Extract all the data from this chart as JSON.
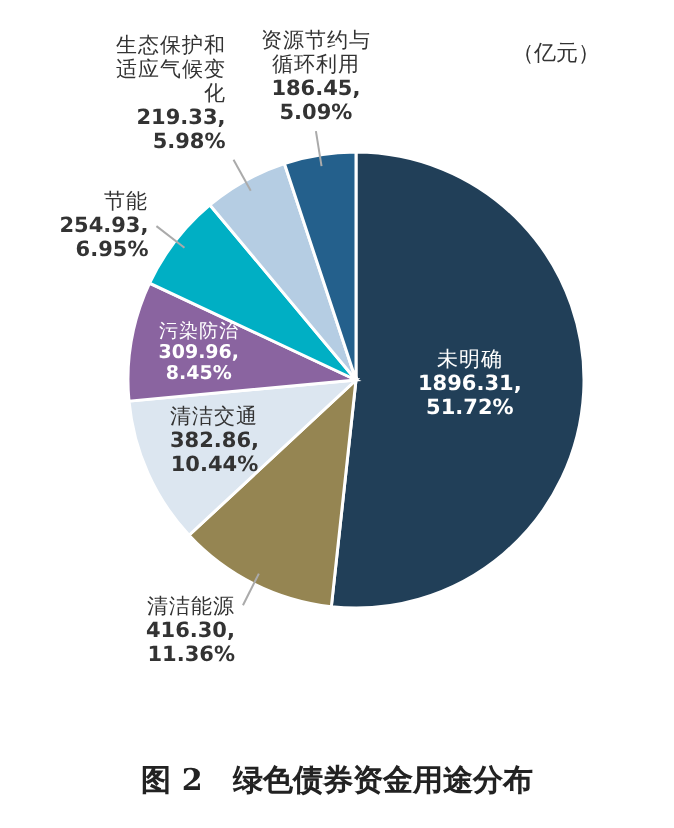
{
  "chart_data": {
    "type": "pie",
    "title": "图 2　绿色债券资金用途分布",
    "annotations": [
      "（亿元）"
    ],
    "categories": [
      "未明确",
      "清洁能源",
      "清洁交通",
      "污染防治",
      "节能",
      "生态保护和适应气候变化",
      "资源节约与循环利用"
    ],
    "values": [
      1896.31,
      416.3,
      382.86,
      309.96,
      254.93,
      219.33,
      186.45
    ],
    "value_labels": [
      "1896.31,\n51.72%",
      "416.30,\n11.36%",
      "382.86,\n10.44%",
      "309.96,\n8.45%",
      "254.93,\n6.95%",
      "219.33,\n5.98%",
      "186.45,\n5.09%"
    ],
    "colors": [
      "#213f58",
      "#958552",
      "#dce6f0",
      "#8a64a0",
      "#00afc4",
      "#b5cde3",
      "#24608c"
    ]
  }
}
